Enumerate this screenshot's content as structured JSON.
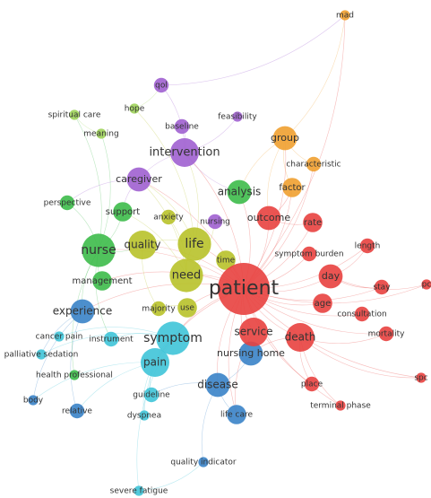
{
  "clusters": {
    "red": "#e8413f",
    "green": "#3dbb4a",
    "blue": "#3a83c8",
    "yellowgreen": "#b8c22a",
    "purple": "#a060d0",
    "cyan": "#3fc4d8",
    "orange": "#f0a030",
    "lightgreen": "#9ed35a"
  },
  "terms": [
    {
      "id": "patient",
      "label": "patient",
      "cluster": "red",
      "weight": 10
    },
    {
      "id": "death",
      "label": "death",
      "cluster": "red",
      "weight": 5
    },
    {
      "id": "service",
      "label": "service",
      "cluster": "red",
      "weight": 5
    },
    {
      "id": "day",
      "label": "day",
      "cluster": "red",
      "weight": 4
    },
    {
      "id": "age",
      "label": "age",
      "cluster": "red",
      "weight": 3
    },
    {
      "id": "rate",
      "label": "rate",
      "cluster": "red",
      "weight": 3
    },
    {
      "id": "outcome",
      "label": "outcome",
      "cluster": "red",
      "weight": 4
    },
    {
      "id": "stay",
      "label": "stay",
      "cluster": "red",
      "weight": 2
    },
    {
      "id": "consultation",
      "label": "consultation",
      "cluster": "red",
      "weight": 2
    },
    {
      "id": "mortality",
      "label": "mortality",
      "cluster": "red",
      "weight": 2
    },
    {
      "id": "length",
      "label": "length",
      "cluster": "red",
      "weight": 2
    },
    {
      "id": "place",
      "label": "place",
      "cluster": "red",
      "weight": 2
    },
    {
      "id": "terminal_phase",
      "label": "terminal phase",
      "cluster": "red",
      "weight": 1
    },
    {
      "id": "spc",
      "label": "spc",
      "cluster": "red",
      "weight": 1
    },
    {
      "id": "pc",
      "label": "pc",
      "cluster": "red",
      "weight": 1
    },
    {
      "id": "symptom_burden",
      "label": "symptom burden",
      "cluster": "red",
      "weight": 2
    },
    {
      "id": "nurse",
      "label": "nurse",
      "cluster": "green",
      "weight": 6
    },
    {
      "id": "management",
      "label": "management",
      "cluster": "green",
      "weight": 3
    },
    {
      "id": "support",
      "label": "support",
      "cluster": "green",
      "weight": 3
    },
    {
      "id": "perspective",
      "label": "perspective",
      "cluster": "green",
      "weight": 2
    },
    {
      "id": "analysis",
      "label": "analysis",
      "cluster": "green",
      "weight": 4
    },
    {
      "id": "quality",
      "label": "quality",
      "cluster": "yellowgreen",
      "weight": 5
    },
    {
      "id": "life",
      "label": "life",
      "cluster": "yellowgreen",
      "weight": 6
    },
    {
      "id": "need",
      "label": "need",
      "cluster": "yellowgreen",
      "weight": 6
    },
    {
      "id": "anxiety",
      "label": "anxiety",
      "cluster": "yellowgreen",
      "weight": 2
    },
    {
      "id": "majority",
      "label": "majority",
      "cluster": "yellowgreen",
      "weight": 2
    },
    {
      "id": "use",
      "label": "use",
      "cluster": "yellowgreen",
      "weight": 3
    },
    {
      "id": "time",
      "label": "time",
      "cluster": "yellowgreen",
      "weight": 3
    },
    {
      "id": "nursing",
      "label": "nursing",
      "cluster": "purple",
      "weight": 2
    },
    {
      "id": "intervention",
      "label": "intervention",
      "cluster": "purple",
      "weight": 5
    },
    {
      "id": "caregiver",
      "label": "caregiver",
      "cluster": "purple",
      "weight": 4
    },
    {
      "id": "baseline",
      "label": "baseline",
      "cluster": "purple",
      "weight": 2
    },
    {
      "id": "qol",
      "label": "qol",
      "cluster": "purple",
      "weight": 2
    },
    {
      "id": "hope",
      "label": "hope",
      "cluster": "lightgreen",
      "weight": 1
    },
    {
      "id": "spiritual_care",
      "label": "spiritual care",
      "cluster": "lightgreen",
      "weight": 1
    },
    {
      "id": "meaning",
      "label": "meaning",
      "cluster": "lightgreen",
      "weight": 1
    },
    {
      "id": "feasibility",
      "label": "feasibility",
      "cluster": "purple",
      "weight": 1
    },
    {
      "id": "group",
      "label": "group",
      "cluster": "orange",
      "weight": 4
    },
    {
      "id": "factor",
      "label": "factor",
      "cluster": "orange",
      "weight": 3
    },
    {
      "id": "characteristic",
      "label": "characteristic",
      "cluster": "orange",
      "weight": 2
    },
    {
      "id": "mad",
      "label": "mad",
      "cluster": "orange",
      "weight": 1
    },
    {
      "id": "experience",
      "label": "experience",
      "cluster": "blue",
      "weight": 4
    },
    {
      "id": "symptom",
      "label": "symptom",
      "cluster": "cyan",
      "weight": 6
    },
    {
      "id": "pain",
      "label": "pain",
      "cluster": "cyan",
      "weight": 5
    },
    {
      "id": "instrument",
      "label": "instrument",
      "cluster": "cyan",
      "weight": 2
    },
    {
      "id": "cancer_pain",
      "label": "cancer pain",
      "cluster": "cyan",
      "weight": 1
    },
    {
      "id": "palliative_sedation",
      "label": "palliative sedation",
      "cluster": "cyan",
      "weight": 1
    },
    {
      "id": "health_professional",
      "label": "health professional",
      "cluster": "green",
      "weight": 1
    },
    {
      "id": "nursing_home",
      "label": "nursing home",
      "cluster": "blue",
      "weight": 4
    },
    {
      "id": "disease",
      "label": "disease",
      "cluster": "blue",
      "weight": 4
    },
    {
      "id": "guideline",
      "label": "guideline",
      "cluster": "cyan",
      "weight": 2
    },
    {
      "id": "dyspnea",
      "label": "dyspnea",
      "cluster": "cyan",
      "weight": 1
    },
    {
      "id": "life_care",
      "label": "life care",
      "cluster": "blue",
      "weight": 3
    },
    {
      "id": "relative",
      "label": "relative",
      "cluster": "blue",
      "weight": 2
    },
    {
      "id": "body",
      "label": "body",
      "cluster": "blue",
      "weight": 1
    },
    {
      "id": "quality_indicator",
      "label": "quality indicator",
      "cluster": "blue",
      "weight": 1
    },
    {
      "id": "severe_fatigue",
      "label": "severe fatigue",
      "cluster": "cyan",
      "weight": 1
    }
  ],
  "links": [
    [
      "patient",
      "death"
    ],
    [
      "patient",
      "service"
    ],
    [
      "patient",
      "day"
    ],
    [
      "patient",
      "age"
    ],
    [
      "patient",
      "rate"
    ],
    [
      "patient",
      "outcome"
    ],
    [
      "patient",
      "stay"
    ],
    [
      "patient",
      "consultation"
    ],
    [
      "patient",
      "mortality"
    ],
    [
      "patient",
      "length"
    ],
    [
      "patient",
      "place"
    ],
    [
      "patient",
      "terminal_phase"
    ],
    [
      "patient",
      "spc"
    ],
    [
      "patient",
      "pc"
    ],
    [
      "patient",
      "symptom_burden"
    ],
    [
      "patient",
      "nurse"
    ],
    [
      "patient",
      "need"
    ],
    [
      "patient",
      "life"
    ],
    [
      "patient",
      "quality"
    ],
    [
      "patient",
      "symptom"
    ],
    [
      "patient",
      "pain"
    ],
    [
      "patient",
      "disease"
    ],
    [
      "patient",
      "nursing_home"
    ],
    [
      "patient",
      "analysis"
    ],
    [
      "patient",
      "group"
    ],
    [
      "patient",
      "intervention"
    ],
    [
      "patient",
      "caregiver"
    ],
    [
      "patient",
      "experience"
    ],
    [
      "patient",
      "management"
    ],
    [
      "patient",
      "time"
    ],
    [
      "patient",
      "use"
    ],
    [
      "patient",
      "factor"
    ],
    [
      "patient",
      "characteristic"
    ],
    [
      "patient",
      "mad"
    ],
    [
      "patient",
      "life_care"
    ],
    [
      "nurse",
      "experience"
    ],
    [
      "nurse",
      "support"
    ],
    [
      "nurse",
      "management"
    ],
    [
      "nurse",
      "perspective"
    ],
    [
      "nurse",
      "quality"
    ],
    [
      "nurse",
      "spiritual_care"
    ],
    [
      "nurse",
      "health_professional"
    ],
    [
      "nurse",
      "instrument"
    ],
    [
      "nurse",
      "meaning"
    ],
    [
      "life",
      "quality"
    ],
    [
      "life",
      "need"
    ],
    [
      "life",
      "intervention"
    ],
    [
      "life",
      "caregiver"
    ],
    [
      "life",
      "hope"
    ],
    [
      "need",
      "support"
    ],
    [
      "need",
      "caregiver"
    ],
    [
      "need",
      "nursing"
    ],
    [
      "need",
      "anxiety"
    ],
    [
      "intervention",
      "qol"
    ],
    [
      "intervention",
      "baseline"
    ],
    [
      "intervention",
      "feasibility"
    ],
    [
      "intervention",
      "caregiver"
    ],
    [
      "intervention",
      "analysis"
    ],
    [
      "group",
      "characteristic"
    ],
    [
      "group",
      "factor"
    ],
    [
      "group",
      "mad"
    ],
    [
      "group",
      "outcome"
    ],
    [
      "group",
      "analysis"
    ],
    [
      "symptom",
      "pain"
    ],
    [
      "symptom",
      "cancer_pain"
    ],
    [
      "symptom",
      "palliative_sedation"
    ],
    [
      "symptom",
      "instrument"
    ],
    [
      "symptom",
      "dyspnea"
    ],
    [
      "symptom",
      "severe_fatigue"
    ],
    [
      "pain",
      "guideline"
    ],
    [
      "pain",
      "relative"
    ],
    [
      "pain",
      "body"
    ],
    [
      "pain",
      "dyspnea"
    ],
    [
      "disease",
      "life_care"
    ],
    [
      "disease",
      "quality_indicator"
    ],
    [
      "disease",
      "guideline"
    ],
    [
      "disease",
      "nursing_home"
    ],
    [
      "experience",
      "relative"
    ],
    [
      "experience",
      "body"
    ],
    [
      "experience",
      "palliative_sedation"
    ],
    [
      "death",
      "place"
    ],
    [
      "death",
      "mortality"
    ],
    [
      "death",
      "terminal_phase"
    ],
    [
      "death",
      "spc"
    ],
    [
      "death",
      "nursing_home"
    ],
    [
      "day",
      "length"
    ],
    [
      "day",
      "stay"
    ],
    [
      "day",
      "pc"
    ],
    [
      "outcome",
      "rate"
    ],
    [
      "outcome",
      "factor"
    ],
    [
      "caregiver",
      "perspective"
    ],
    [
      "caregiver",
      "support"
    ],
    [
      "quality",
      "majority"
    ],
    [
      "use",
      "majority"
    ],
    [
      "service",
      "life_care"
    ],
    [
      "qol",
      "mad"
    ],
    [
      "spiritual_care",
      "meaning"
    ],
    [
      "hope",
      "qol"
    ],
    [
      "severe_fatigue",
      "quality_indicator"
    ]
  ]
}
